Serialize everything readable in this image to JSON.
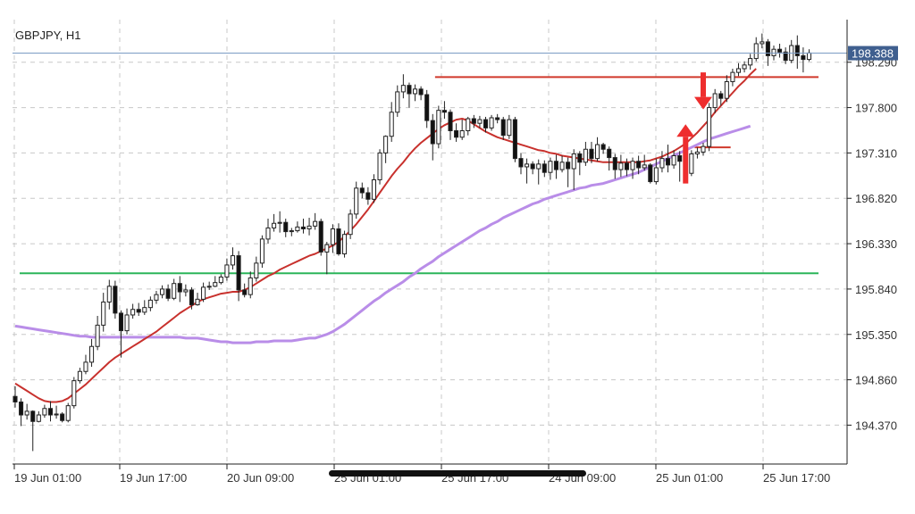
{
  "symbol_label": "GBPJPY, H1",
  "current_price_label": "198.388",
  "chart_data": {
    "type": "candlestick",
    "symbol": "GBPJPY",
    "timeframe": "H1",
    "ylim": [
      193.95,
      198.75
    ],
    "y_ticks": [
      194.37,
      194.86,
      195.35,
      195.84,
      196.33,
      196.82,
      197.31,
      197.8,
      198.29
    ],
    "y_tick_labels": [
      "194.370",
      "194.860",
      "195.350",
      "195.840",
      "196.330",
      "196.820",
      "197.310",
      "197.800",
      "198.290"
    ],
    "x_tick_labels": [
      "19 Jun 01:00",
      "19 Jun 17:00",
      "20 Jun 09:00",
      "25 Jun 01:00",
      "25 Jun 17:00",
      "24 Jun 09:00",
      "25 Jun 01:00",
      "25 Jun 17:00"
    ],
    "current_price": 198.388,
    "candles": [
      [
        194.68,
        194.62,
        194.79,
        194.56
      ],
      [
        194.62,
        194.48,
        194.66,
        194.36
      ],
      [
        194.48,
        194.52,
        194.6,
        194.43
      ],
      [
        194.52,
        194.41,
        194.53,
        194.09
      ],
      [
        194.41,
        194.48,
        194.52,
        194.4
      ],
      [
        194.48,
        194.55,
        194.59,
        194.45
      ],
      [
        194.55,
        194.48,
        194.63,
        194.41
      ],
      [
        194.48,
        194.49,
        194.58,
        194.44
      ],
      [
        194.49,
        194.42,
        194.51,
        194.4
      ],
      [
        194.42,
        194.58,
        194.61,
        194.4
      ],
      [
        194.58,
        194.85,
        194.89,
        194.55
      ],
      [
        194.85,
        194.95,
        194.99,
        194.82
      ],
      [
        194.95,
        195.05,
        195.13,
        194.92
      ],
      [
        195.05,
        195.22,
        195.3,
        195.0
      ],
      [
        195.22,
        195.45,
        195.55,
        195.18
      ],
      [
        195.45,
        195.7,
        195.8,
        195.38
      ],
      [
        195.7,
        195.87,
        195.94,
        195.62
      ],
      [
        195.87,
        195.58,
        195.93,
        195.52
      ],
      [
        195.58,
        195.39,
        195.61,
        195.1
      ],
      [
        195.39,
        195.56,
        195.63,
        195.35
      ],
      [
        195.56,
        195.62,
        195.68,
        195.52
      ],
      [
        195.62,
        195.59,
        195.69,
        195.55
      ],
      [
        195.59,
        195.64,
        195.72,
        195.56
      ],
      [
        195.64,
        195.72,
        195.76,
        195.6
      ],
      [
        195.72,
        195.78,
        195.82,
        195.68
      ],
      [
        195.78,
        195.84,
        195.88,
        195.74
      ],
      [
        195.84,
        195.74,
        195.89,
        195.71
      ],
      [
        195.74,
        195.9,
        195.95,
        195.72
      ],
      [
        195.9,
        195.81,
        195.98,
        195.7
      ],
      [
        195.81,
        195.83,
        195.89,
        195.76
      ],
      [
        195.83,
        195.67,
        195.86,
        195.62
      ],
      [
        195.67,
        195.73,
        195.8,
        195.66
      ],
      [
        195.73,
        195.86,
        195.91,
        195.7
      ],
      [
        195.86,
        195.87,
        195.92,
        195.83
      ],
      [
        195.87,
        195.91,
        195.98,
        195.86
      ],
      [
        195.91,
        195.97,
        196.0,
        195.89
      ],
      [
        195.97,
        196.1,
        196.17,
        195.93
      ],
      [
        196.1,
        196.2,
        196.29,
        196.05
      ],
      [
        196.2,
        195.83,
        196.25,
        195.71
      ],
      [
        195.83,
        195.78,
        195.9,
        195.75
      ],
      [
        195.78,
        195.96,
        196.03,
        195.74
      ],
      [
        195.96,
        196.12,
        196.19,
        195.92
      ],
      [
        196.12,
        196.38,
        196.42,
        196.07
      ],
      [
        196.38,
        196.5,
        196.6,
        196.33
      ],
      [
        196.5,
        196.55,
        196.65,
        196.46
      ],
      [
        196.55,
        196.56,
        196.68,
        196.45
      ],
      [
        196.56,
        196.46,
        196.6,
        196.4
      ],
      [
        196.46,
        196.47,
        196.5,
        196.41
      ],
      [
        196.47,
        196.51,
        196.57,
        196.45
      ],
      [
        196.51,
        196.49,
        196.6,
        196.44
      ],
      [
        196.49,
        196.52,
        196.61,
        196.42
      ],
      [
        196.52,
        196.57,
        196.66,
        196.48
      ],
      [
        196.57,
        196.24,
        196.6,
        196.2
      ],
      [
        196.24,
        196.32,
        196.35,
        196.0
      ],
      [
        196.32,
        196.49,
        196.54,
        196.23
      ],
      [
        196.49,
        196.22,
        196.55,
        196.2
      ],
      [
        196.22,
        196.43,
        196.47,
        196.18
      ],
      [
        196.43,
        196.65,
        196.7,
        196.38
      ],
      [
        196.65,
        196.93,
        197.0,
        196.6
      ],
      [
        196.93,
        196.88,
        196.99,
        196.82
      ],
      [
        196.88,
        196.81,
        196.94,
        196.75
      ],
      [
        196.81,
        197.02,
        197.08,
        196.77
      ],
      [
        197.02,
        197.31,
        197.35,
        196.97
      ],
      [
        197.31,
        197.49,
        197.5,
        197.2
      ],
      [
        197.49,
        197.75,
        197.86,
        197.43
      ],
      [
        197.75,
        197.97,
        198.04,
        197.7
      ],
      [
        197.97,
        198.04,
        198.16,
        197.9
      ],
      [
        198.04,
        197.95,
        198.07,
        197.8
      ],
      [
        197.95,
        198.0,
        198.05,
        197.87
      ],
      [
        198.0,
        197.94,
        198.03,
        197.88
      ],
      [
        197.94,
        197.66,
        197.99,
        197.58
      ],
      [
        197.66,
        197.41,
        197.73,
        197.23
      ],
      [
        197.41,
        197.77,
        197.82,
        197.36
      ],
      [
        197.77,
        197.75,
        197.87,
        197.68
      ],
      [
        197.75,
        197.55,
        197.78,
        197.45
      ],
      [
        197.55,
        197.48,
        197.63,
        197.43
      ],
      [
        197.48,
        197.55,
        197.67,
        197.45
      ],
      [
        197.55,
        197.68,
        197.7,
        197.5
      ],
      [
        197.68,
        197.63,
        197.72,
        197.58
      ],
      [
        197.63,
        197.67,
        197.71,
        197.58
      ],
      [
        197.67,
        197.58,
        197.7,
        197.53
      ],
      [
        197.58,
        197.69,
        197.72,
        197.55
      ],
      [
        197.69,
        197.67,
        197.73,
        197.63
      ],
      [
        197.67,
        197.5,
        197.7,
        197.45
      ],
      [
        197.5,
        197.67,
        197.72,
        197.46
      ],
      [
        197.67,
        197.25,
        197.7,
        197.21
      ],
      [
        197.25,
        197.16,
        197.31,
        197.08
      ],
      [
        197.16,
        197.19,
        197.25,
        196.98
      ],
      [
        197.19,
        197.14,
        197.22,
        197.08
      ],
      [
        197.14,
        197.19,
        197.24,
        196.97
      ],
      [
        197.19,
        197.1,
        197.23,
        197.05
      ],
      [
        197.1,
        197.22,
        197.26,
        197.02
      ],
      [
        197.22,
        197.13,
        197.29,
        197.03
      ],
      [
        197.13,
        197.21,
        197.28,
        197.1
      ],
      [
        197.21,
        197.14,
        197.26,
        196.94
      ],
      [
        197.14,
        197.3,
        197.35,
        196.91
      ],
      [
        197.3,
        197.21,
        197.33,
        197.07
      ],
      [
        197.21,
        197.35,
        197.43,
        197.17
      ],
      [
        197.35,
        197.25,
        197.43,
        197.2
      ],
      [
        197.25,
        197.4,
        197.48,
        197.22
      ],
      [
        197.4,
        197.35,
        197.42,
        197.3
      ],
      [
        197.35,
        197.26,
        197.38,
        197.12
      ],
      [
        197.26,
        197.13,
        197.3,
        197.03
      ],
      [
        197.13,
        197.2,
        197.29,
        197.05
      ],
      [
        197.2,
        197.13,
        197.25,
        197.06
      ],
      [
        197.13,
        197.22,
        197.26,
        197.03
      ],
      [
        197.22,
        197.15,
        197.28,
        197.08
      ],
      [
        197.15,
        197.18,
        197.29,
        197.12
      ],
      [
        197.18,
        197.0,
        197.2,
        196.98
      ],
      [
        197.0,
        197.15,
        197.25,
        196.97
      ],
      [
        197.15,
        197.25,
        197.33,
        197.1
      ],
      [
        197.25,
        197.18,
        197.4,
        197.1
      ],
      [
        197.18,
        197.28,
        197.34,
        197.14
      ],
      [
        197.28,
        197.22,
        197.33,
        197.0
      ],
      [
        197.22,
        197.09,
        197.25,
        197.0
      ],
      [
        197.09,
        197.3,
        197.34,
        197.06
      ],
      [
        197.3,
        197.32,
        197.37,
        197.25
      ],
      [
        197.32,
        197.38,
        197.42,
        197.28
      ],
      [
        197.38,
        197.8,
        197.85,
        197.33
      ],
      [
        197.8,
        197.95,
        198.0,
        197.74
      ],
      [
        197.95,
        197.9,
        197.98,
        197.82
      ],
      [
        197.9,
        198.08,
        198.15,
        197.86
      ],
      [
        198.08,
        198.18,
        198.22,
        198.03
      ],
      [
        198.18,
        198.22,
        198.28,
        198.14
      ],
      [
        198.22,
        198.26,
        198.3,
        198.18
      ],
      [
        198.26,
        198.33,
        198.38,
        198.21
      ],
      [
        198.33,
        198.49,
        198.56,
        198.3
      ],
      [
        198.49,
        198.51,
        198.6,
        198.44
      ],
      [
        198.51,
        198.36,
        198.54,
        198.25
      ],
      [
        198.36,
        198.43,
        198.47,
        198.31
      ],
      [
        198.43,
        198.4,
        198.49,
        198.34
      ],
      [
        198.4,
        198.31,
        198.45,
        198.27
      ],
      [
        198.31,
        198.47,
        198.53,
        198.28
      ],
      [
        198.47,
        198.36,
        198.58,
        198.22
      ],
      [
        198.36,
        198.32,
        198.45,
        198.18
      ],
      [
        198.32,
        198.39,
        198.43,
        198.3
      ]
    ],
    "sma_fast": [
      194.82,
      194.78,
      194.74,
      194.7,
      194.66,
      194.63,
      194.62,
      194.62,
      194.63,
      194.66,
      194.71,
      194.76,
      194.81,
      194.87,
      194.93,
      194.99,
      195.05,
      195.1,
      195.14,
      195.18,
      195.22,
      195.26,
      195.3,
      195.34,
      195.38,
      195.43,
      195.48,
      195.53,
      195.58,
      195.62,
      195.66,
      195.7,
      195.73,
      195.75,
      195.77,
      195.79,
      195.8,
      195.81,
      195.81,
      195.83,
      195.86,
      195.9,
      195.94,
      195.98,
      196.01,
      196.05,
      196.08,
      196.11,
      196.14,
      196.17,
      196.2,
      196.22,
      196.25,
      196.28,
      196.31,
      196.35,
      196.41,
      196.47,
      196.54,
      196.62,
      196.7,
      196.79,
      196.88,
      196.97,
      197.06,
      197.14,
      197.21,
      197.29,
      197.36,
      197.42,
      197.47,
      197.52,
      197.57,
      197.61,
      197.64,
      197.67,
      197.68,
      197.66,
      197.62,
      197.58,
      197.54,
      197.51,
      197.48,
      197.46,
      197.44,
      197.42,
      197.4,
      197.38,
      197.36,
      197.34,
      197.33,
      197.31,
      197.3,
      197.28,
      197.27,
      197.26,
      197.25,
      197.24,
      197.23,
      197.22,
      197.21,
      197.21,
      197.21,
      197.21,
      197.21,
      197.21,
      197.21,
      197.22,
      197.23,
      197.25,
      197.27,
      197.3,
      197.33,
      197.37,
      197.41,
      197.47,
      197.53,
      197.6,
      197.67,
      197.75,
      197.82,
      197.89,
      197.96,
      198.03,
      198.09,
      198.16,
      198.22
    ],
    "sma_slow": [
      195.44,
      195.43,
      195.42,
      195.41,
      195.4,
      195.39,
      195.38,
      195.37,
      195.36,
      195.35,
      195.34,
      195.33,
      195.33,
      195.32,
      195.32,
      195.32,
      195.32,
      195.32,
      195.32,
      195.32,
      195.32,
      195.32,
      195.32,
      195.32,
      195.32,
      195.32,
      195.32,
      195.32,
      195.32,
      195.31,
      195.31,
      195.31,
      195.3,
      195.29,
      195.28,
      195.27,
      195.27,
      195.26,
      195.26,
      195.26,
      195.26,
      195.27,
      195.27,
      195.27,
      195.28,
      195.28,
      195.28,
      195.28,
      195.29,
      195.3,
      195.31,
      195.31,
      195.33,
      195.35,
      195.38,
      195.42,
      195.46,
      195.51,
      195.56,
      195.61,
      195.66,
      195.71,
      195.75,
      195.8,
      195.84,
      195.88,
      195.92,
      195.97,
      196.01,
      196.06,
      196.1,
      196.14,
      196.19,
      196.23,
      196.27,
      196.31,
      196.35,
      196.39,
      196.43,
      196.47,
      196.5,
      196.54,
      196.57,
      196.61,
      196.64,
      196.67,
      196.7,
      196.73,
      196.76,
      196.78,
      196.81,
      196.83,
      196.85,
      196.87,
      196.89,
      196.91,
      196.93,
      196.94,
      196.96,
      196.97,
      196.98,
      197.0,
      197.02,
      197.04,
      197.06,
      197.08,
      197.1,
      197.13,
      197.16,
      197.19,
      197.22,
      197.25,
      197.28,
      197.31,
      197.34,
      197.37,
      197.4,
      197.43,
      197.46,
      197.48,
      197.5,
      197.52,
      197.54,
      197.56,
      197.58,
      197.6
    ],
    "levels": [
      {
        "price": 196.01,
        "color": "#2bb55a",
        "from": 0,
        "to": 1
      },
      {
        "price": 198.13,
        "color": "#d0392b",
        "from": 0.52,
        "to": 1
      },
      {
        "price": 197.37,
        "color": "#d0392b",
        "from": 0.845,
        "to": 0.89
      }
    ],
    "arrows": [
      {
        "direction": "up",
        "x_index": 114,
        "price_from": 196.98,
        "price_to": 197.62,
        "color": "#ee2e2e"
      },
      {
        "direction": "down",
        "x_index": 117,
        "price_from": 198.18,
        "price_to": 197.78,
        "color": "#ee2e2e"
      }
    ],
    "colors": {
      "sma_fast": "#c8312d",
      "sma_slow": "#b98de8",
      "price_line": "#7b9bc4",
      "price_tag": "#3f5f8f",
      "grid": "#c8c8c8",
      "axis": "#1f1f1f"
    },
    "grid": true
  }
}
